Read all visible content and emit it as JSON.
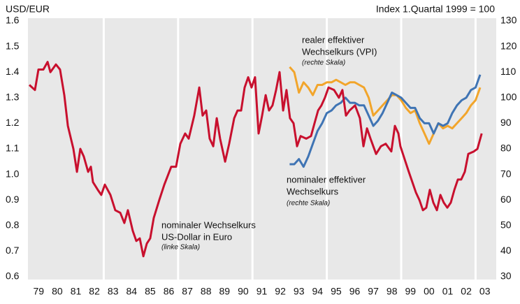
{
  "chart_data": {
    "type": "line",
    "y_axis_title": "USD/EUR",
    "y2_axis_title": "Index 1.Quartal 1999 = 100",
    "annotations": [
      "realer effektiver",
      "Wechselkurs (VPI)",
      "(rechte Skala)",
      "nominaler effektiver",
      "Wechselkurs",
      "(rechte Skala)",
      "nominaler Wechselkurs",
      "US-Dollar in Euro",
      "(linke Skala)"
    ],
    "xlim": [
      1979,
      2004
    ],
    "xticks": [
      {
        "value": 1979.5,
        "label": "79"
      },
      {
        "value": 1980.5,
        "label": "80"
      },
      {
        "value": 1981.5,
        "label": "81"
      },
      {
        "value": 1982.5,
        "label": "82"
      },
      {
        "value": 1983.5,
        "label": "83"
      },
      {
        "value": 1984.5,
        "label": "84"
      },
      {
        "value": 1985.5,
        "label": "85"
      },
      {
        "value": 1986.5,
        "label": "86"
      },
      {
        "value": 1987.5,
        "label": "87"
      },
      {
        "value": 1988.5,
        "label": "88"
      },
      {
        "value": 1989.5,
        "label": "89"
      },
      {
        "value": 1990.5,
        "label": "90"
      },
      {
        "value": 1991.5,
        "label": "91"
      },
      {
        "value": 1992.5,
        "label": "92"
      },
      {
        "value": 1993.5,
        "label": "93"
      },
      {
        "value": 1994.5,
        "label": "94"
      },
      {
        "value": 1995.5,
        "label": "95"
      },
      {
        "value": 1996.5,
        "label": "96"
      },
      {
        "value": 1997.5,
        "label": "97"
      },
      {
        "value": 1998.5,
        "label": "98"
      },
      {
        "value": 1999.5,
        "label": "99"
      },
      {
        "value": 2000.5,
        "label": "00"
      },
      {
        "value": 2001.5,
        "label": "01"
      },
      {
        "value": 2002.5,
        "label": "02"
      },
      {
        "value": 2003.5,
        "label": "03"
      }
    ],
    "xgrid": [
      1983,
      1987,
      1991,
      1995,
      1999,
      2003
    ],
    "ylim": [
      0.6,
      1.6
    ],
    "yticks": [
      0.6,
      0.7,
      0.8,
      0.9,
      {
        "value": 1,
        "label": "1.0"
      },
      1.1,
      1.2,
      1.3,
      1.4,
      1.5,
      1.6
    ],
    "y2lim": [
      30,
      130
    ],
    "y2ticks": [
      30,
      40,
      50,
      60,
      70,
      80,
      90,
      100,
      110,
      120,
      130
    ],
    "series": [
      {
        "name": "nominaler Wechselkurs US-Dollar in Euro",
        "color": "#c8102e",
        "x": [
          1979.0,
          1979.3,
          1979.49,
          1979.75,
          1979.98,
          1980.13,
          1980.43,
          1980.65,
          1980.88,
          1981.07,
          1981.37,
          1981.56,
          1981.74,
          1981.93,
          1982.16,
          1982.31,
          1982.42,
          1982.68,
          1982.87,
          1983.06,
          1983.36,
          1983.62,
          1983.89,
          1984.11,
          1984.3,
          1984.56,
          1984.75,
          1984.94,
          1985.13,
          1985.32,
          1985.5,
          1985.69,
          1985.99,
          1986.26,
          1986.63,
          1986.89,
          1987.12,
          1987.38,
          1987.57,
          1987.87,
          1988.14,
          1988.32,
          1988.51,
          1988.7,
          1988.89,
          1989.08,
          1989.26,
          1989.53,
          1989.75,
          1990.02,
          1990.2,
          1990.39,
          1990.58,
          1990.77,
          1990.95,
          1991.14,
          1991.33,
          1991.52,
          1991.71,
          1991.89,
          1992.08,
          1992.27,
          1992.46,
          1992.65,
          1992.83,
          1993.02,
          1993.21,
          1993.4,
          1993.59,
          1993.89,
          1994.15,
          1994.34,
          1994.53,
          1994.71,
          1994.9,
          1995.09,
          1995.39,
          1995.65,
          1995.84,
          1996.03,
          1996.22,
          1996.52,
          1996.78,
          1996.97,
          1997.16,
          1997.35,
          1997.65,
          1997.91,
          1998.17,
          1998.47,
          1998.66,
          1998.85,
          1998.96,
          1999.23,
          1999.41,
          1999.6,
          1999.79,
          1999.98,
          2000.17,
          2000.35,
          2000.54,
          2000.73,
          2000.92,
          2001.11,
          2001.29,
          2001.48,
          2001.67,
          2001.86,
          2002.05,
          2002.23,
          2002.42,
          2002.61,
          2002.91,
          2003.1,
          2003.33
        ],
        "values": [
          1.35,
          1.33,
          1.41,
          1.41,
          1.44,
          1.4,
          1.43,
          1.41,
          1.31,
          1.19,
          1.1,
          1.01,
          1.1,
          1.07,
          1.01,
          1.03,
          0.97,
          0.94,
          0.92,
          0.96,
          0.92,
          0.86,
          0.85,
          0.81,
          0.86,
          0.78,
          0.74,
          0.75,
          0.68,
          0.73,
          0.75,
          0.83,
          0.9,
          0.96,
          1.03,
          1.03,
          1.12,
          1.16,
          1.14,
          1.23,
          1.34,
          1.23,
          1.25,
          1.14,
          1.11,
          1.22,
          1.14,
          1.05,
          1.12,
          1.22,
          1.25,
          1.25,
          1.34,
          1.38,
          1.34,
          1.38,
          1.16,
          1.23,
          1.31,
          1.25,
          1.27,
          1.33,
          1.4,
          1.25,
          1.33,
          1.22,
          1.2,
          1.11,
          1.15,
          1.14,
          1.15,
          1.2,
          1.25,
          1.27,
          1.3,
          1.34,
          1.33,
          1.3,
          1.33,
          1.23,
          1.25,
          1.27,
          1.22,
          1.11,
          1.18,
          1.14,
          1.08,
          1.11,
          1.12,
          1.09,
          1.19,
          1.16,
          1.11,
          1.05,
          1.01,
          0.97,
          0.93,
          0.9,
          0.86,
          0.87,
          0.94,
          0.89,
          0.86,
          0.92,
          0.89,
          0.87,
          0.89,
          0.94,
          0.98,
          0.98,
          1.01,
          1.08,
          1.09,
          1.1,
          1.16
        ]
      },
      {
        "name": "nominaler effektiver Wechselkurs",
        "color": "#3f74b4",
        "axis": "y2",
        "x": [
          1993.0,
          1993.25,
          1993.5,
          1993.75,
          1994.0,
          1994.25,
          1994.5,
          1994.75,
          1995.0,
          1995.25,
          1995.5,
          1995.75,
          1996.0,
          1996.25,
          1996.5,
          1996.75,
          1997.0,
          1997.25,
          1997.5,
          1997.75,
          1998.0,
          1998.25,
          1998.5,
          1998.75,
          1999.0,
          1999.25,
          1999.5,
          1999.75,
          2000.0,
          2000.25,
          2000.5,
          2000.75,
          2001.0,
          2001.25,
          2001.5,
          2001.75,
          2002.0,
          2002.25,
          2002.5,
          2002.75,
          2003.0,
          2003.25
        ],
        "values": [
          74,
          74,
          76,
          73,
          77,
          82,
          87,
          90,
          94,
          95,
          97,
          98,
          100,
          98,
          98,
          97,
          97,
          93,
          89,
          91,
          94,
          98,
          102,
          101,
          100,
          98,
          96,
          96,
          92,
          90,
          90,
          86,
          90,
          89,
          90,
          94,
          97,
          99,
          100,
          103,
          104,
          109
        ]
      },
      {
        "name": "realer effektiver Wechselkurs (VPI)",
        "color": "#f2a52b",
        "axis": "y2",
        "x": [
          1993.0,
          1993.25,
          1993.5,
          1993.75,
          1994.0,
          1994.25,
          1994.5,
          1994.75,
          1995.0,
          1995.25,
          1995.5,
          1995.75,
          1996.0,
          1996.25,
          1996.5,
          1996.75,
          1997.0,
          1997.25,
          1997.5,
          1997.75,
          1998.0,
          1998.25,
          1998.5,
          1998.75,
          1999.0,
          1999.25,
          1999.5,
          1999.75,
          2000.0,
          2000.25,
          2000.5,
          2000.75,
          2001.0,
          2001.25,
          2001.5,
          2001.75,
          2002.0,
          2002.25,
          2002.5,
          2002.75,
          2003.0,
          2003.25
        ],
        "values": [
          112,
          110,
          102,
          106,
          104,
          101,
          105,
          105,
          106,
          106,
          107,
          106,
          105,
          106,
          106,
          105,
          104,
          100,
          93,
          95,
          97,
          99,
          101,
          101,
          99,
          96,
          94,
          95,
          90,
          86,
          82,
          86,
          90,
          88,
          89,
          88,
          90,
          92,
          94,
          97,
          99,
          104
        ]
      }
    ]
  }
}
